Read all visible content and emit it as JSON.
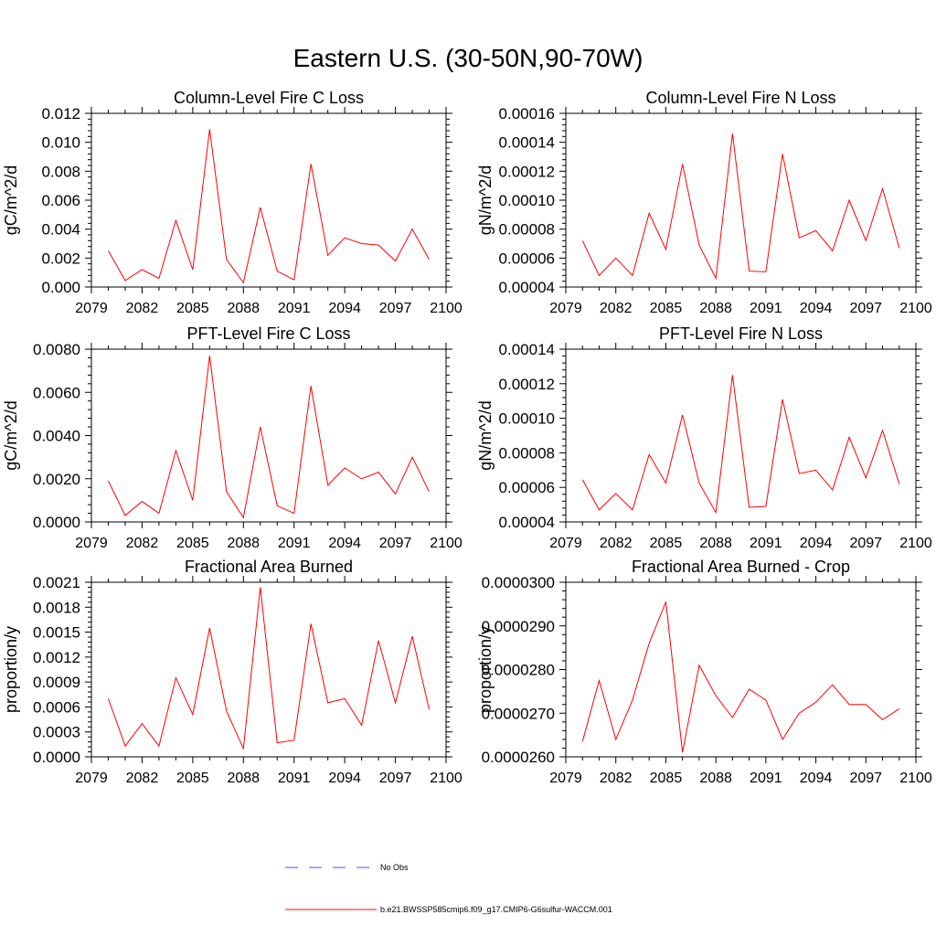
{
  "figure_title": "Eastern U.S. (30-50N,90-70W)",
  "colors": {
    "model_line": "#ff0000",
    "obs_line": "#4d4dff",
    "axis": "#000000"
  },
  "legend": {
    "obs_label": "No Obs",
    "model_label": "b.e21.BWSSP585cmip6.f09_g17.CMIP6-G6sulfur-WACCM.001"
  },
  "chart_data": [
    {
      "type": "line",
      "title": "Column-Level Fire C Loss",
      "ylabel": "gC/m^2/d",
      "xlim": [
        2079,
        2100
      ],
      "ylim": [
        0,
        0.012
      ],
      "xticks": [
        2079,
        2082,
        2085,
        2088,
        2091,
        2094,
        2097,
        2100
      ],
      "yticks": [
        "0.000",
        "0.002",
        "0.004",
        "0.006",
        "0.008",
        "0.010",
        "0.012"
      ],
      "ytick_values": [
        0,
        0.002,
        0.004,
        0.006,
        0.008,
        0.01,
        0.012
      ],
      "x": [
        2080,
        2081,
        2082,
        2083,
        2084,
        2085,
        2086,
        2087,
        2088,
        2089,
        2090,
        2091,
        2092,
        2093,
        2094,
        2095,
        2096,
        2097,
        2098,
        2099
      ],
      "series": [
        {
          "name": "b.e21.BWSSP585cmip6.f09_g17.CMIP6-G6sulfur-WACCM.001",
          "values": [
            0.0025,
            0.00045,
            0.0012,
            0.0006,
            0.0046,
            0.0012,
            0.0109,
            0.0019,
            0.0003,
            0.0055,
            0.0011,
            0.0005,
            0.0085,
            0.0022,
            0.0034,
            0.003,
            0.0029,
            0.0018,
            0.004,
            0.0019
          ]
        }
      ]
    },
    {
      "type": "line",
      "title": "Column-Level Fire N Loss",
      "ylabel": "gN/m^2/d",
      "xlim": [
        2079,
        2100
      ],
      "ylim": [
        4e-05,
        0.00016
      ],
      "xticks": [
        2079,
        2082,
        2085,
        2088,
        2091,
        2094,
        2097,
        2100
      ],
      "yticks": [
        "0.00004",
        "0.00006",
        "0.00008",
        "0.00010",
        "0.00012",
        "0.00014",
        "0.00016"
      ],
      "ytick_values": [
        4e-05,
        6e-05,
        8e-05,
        0.0001,
        0.00012,
        0.00014,
        0.00016
      ],
      "x": [
        2080,
        2081,
        2082,
        2083,
        2084,
        2085,
        2086,
        2087,
        2088,
        2089,
        2090,
        2091,
        2092,
        2093,
        2094,
        2095,
        2096,
        2097,
        2098,
        2099
      ],
      "series": [
        {
          "name": "b.e21.BWSSP585cmip6.f09_g17.CMIP6-G6sulfur-WACCM.001",
          "values": [
            7.2e-05,
            4.8e-05,
            6e-05,
            4.8e-05,
            9.1e-05,
            6.6e-05,
            0.000125,
            6.9e-05,
            4.6e-05,
            0.000146,
            5.1e-05,
            5.05e-05,
            0.000132,
            7.4e-05,
            7.9e-05,
            6.5e-05,
            0.0001,
            7.2e-05,
            0.000108,
            6.7e-05
          ]
        }
      ]
    },
    {
      "type": "line",
      "title": "PFT-Level Fire C Loss",
      "ylabel": "gC/m^2/d",
      "xlim": [
        2079,
        2100
      ],
      "ylim": [
        0,
        0.008
      ],
      "xticks": [
        2079,
        2082,
        2085,
        2088,
        2091,
        2094,
        2097,
        2100
      ],
      "yticks": [
        "0.0000",
        "0.0020",
        "0.0040",
        "0.0060",
        "0.0080"
      ],
      "ytick_values": [
        0,
        0.002,
        0.004,
        0.006,
        0.008
      ],
      "x": [
        2080,
        2081,
        2082,
        2083,
        2084,
        2085,
        2086,
        2087,
        2088,
        2089,
        2090,
        2091,
        2092,
        2093,
        2094,
        2095,
        2096,
        2097,
        2098,
        2099
      ],
      "series": [
        {
          "name": "b.e21.BWSSP585cmip6.f09_g17.CMIP6-G6sulfur-WACCM.001",
          "values": [
            0.0019,
            0.0003,
            0.00095,
            0.0004,
            0.0033,
            0.001,
            0.0077,
            0.0014,
            0.0002,
            0.0044,
            0.00075,
            0.0004,
            0.0063,
            0.0017,
            0.0025,
            0.002,
            0.0023,
            0.0013,
            0.003,
            0.0014
          ]
        }
      ]
    },
    {
      "type": "line",
      "title": "PFT-Level Fire N Loss",
      "ylabel": "gN/m^2/d",
      "xlim": [
        2079,
        2100
      ],
      "ylim": [
        4e-05,
        0.00014
      ],
      "xticks": [
        2079,
        2082,
        2085,
        2088,
        2091,
        2094,
        2097,
        2100
      ],
      "yticks": [
        "0.00004",
        "0.00006",
        "0.00008",
        "0.00010",
        "0.00012",
        "0.00014"
      ],
      "ytick_values": [
        4e-05,
        6e-05,
        8e-05,
        0.0001,
        0.00012,
        0.00014
      ],
      "x": [
        2080,
        2081,
        2082,
        2083,
        2084,
        2085,
        2086,
        2087,
        2088,
        2089,
        2090,
        2091,
        2092,
        2093,
        2094,
        2095,
        2096,
        2097,
        2098,
        2099
      ],
      "series": [
        {
          "name": "b.e21.BWSSP585cmip6.f09_g17.CMIP6-G6sulfur-WACCM.001",
          "values": [
            6.45e-05,
            4.7e-05,
            5.65e-05,
            4.7e-05,
            7.9e-05,
            6.25e-05,
            0.000102,
            6.25e-05,
            4.55e-05,
            0.000125,
            4.85e-05,
            4.9e-05,
            0.000111,
            6.8e-05,
            7e-05,
            5.85e-05,
            8.9e-05,
            6.55e-05,
            9.3e-05,
            6.2e-05
          ]
        }
      ]
    },
    {
      "type": "line",
      "title": "Fractional Area Burned",
      "ylabel": "proportion/y",
      "xlim": [
        2079,
        2100
      ],
      "ylim": [
        0,
        0.0021
      ],
      "xticks": [
        2079,
        2082,
        2085,
        2088,
        2091,
        2094,
        2097,
        2100
      ],
      "yticks": [
        "0.0000",
        "0.0003",
        "0.0006",
        "0.0009",
        "0.0012",
        "0.0015",
        "0.0018",
        "0.0021"
      ],
      "ytick_values": [
        0,
        0.0003,
        0.0006,
        0.0009,
        0.0012,
        0.0015,
        0.0018,
        0.0021
      ],
      "x": [
        2080,
        2081,
        2082,
        2083,
        2084,
        2085,
        2086,
        2087,
        2088,
        2089,
        2090,
        2091,
        2092,
        2093,
        2094,
        2095,
        2096,
        2097,
        2098,
        2099
      ],
      "series": [
        {
          "name": "b.e21.BWSSP585cmip6.f09_g17.CMIP6-G6sulfur-WACCM.001",
          "values": [
            0.0007,
            0.00013,
            0.0004,
            0.00013,
            0.00095,
            0.00051,
            0.00155,
            0.00055,
            0.0001,
            0.00204,
            0.00017,
            0.0002,
            0.0016,
            0.00065,
            0.0007,
            0.00038,
            0.0014,
            0.00065,
            0.00145,
            0.00057
          ]
        }
      ]
    },
    {
      "type": "line",
      "title": "Fractional Area Burned - Crop",
      "ylabel": "proportion/y",
      "xlim": [
        2079,
        2100
      ],
      "ylim": [
        2.6e-05,
        3e-05
      ],
      "xticks": [
        2079,
        2082,
        2085,
        2088,
        2091,
        2094,
        2097,
        2100
      ],
      "yticks": [
        "0.0000260",
        "0.0000270",
        "0.0000280",
        "0.0000290",
        "0.0000300"
      ],
      "ytick_values": [
        2.6e-05,
        2.7e-05,
        2.8e-05,
        2.9e-05,
        3e-05
      ],
      "x": [
        2080,
        2081,
        2082,
        2083,
        2084,
        2085,
        2086,
        2087,
        2088,
        2089,
        2090,
        2091,
        2092,
        2093,
        2094,
        2095,
        2096,
        2097,
        2098,
        2099
      ],
      "series": [
        {
          "name": "b.e21.BWSSP585cmip6.f09_g17.CMIP6-G6sulfur-WACCM.001",
          "values": [
            2.635e-05,
            2.775e-05,
            2.64e-05,
            2.73e-05,
            2.86e-05,
            2.955e-05,
            2.61e-05,
            2.81e-05,
            2.74e-05,
            2.69e-05,
            2.755e-05,
            2.73e-05,
            2.64e-05,
            2.7e-05,
            2.725e-05,
            2.765e-05,
            2.72e-05,
            2.72e-05,
            2.685e-05,
            2.71e-05
          ]
        }
      ]
    }
  ]
}
